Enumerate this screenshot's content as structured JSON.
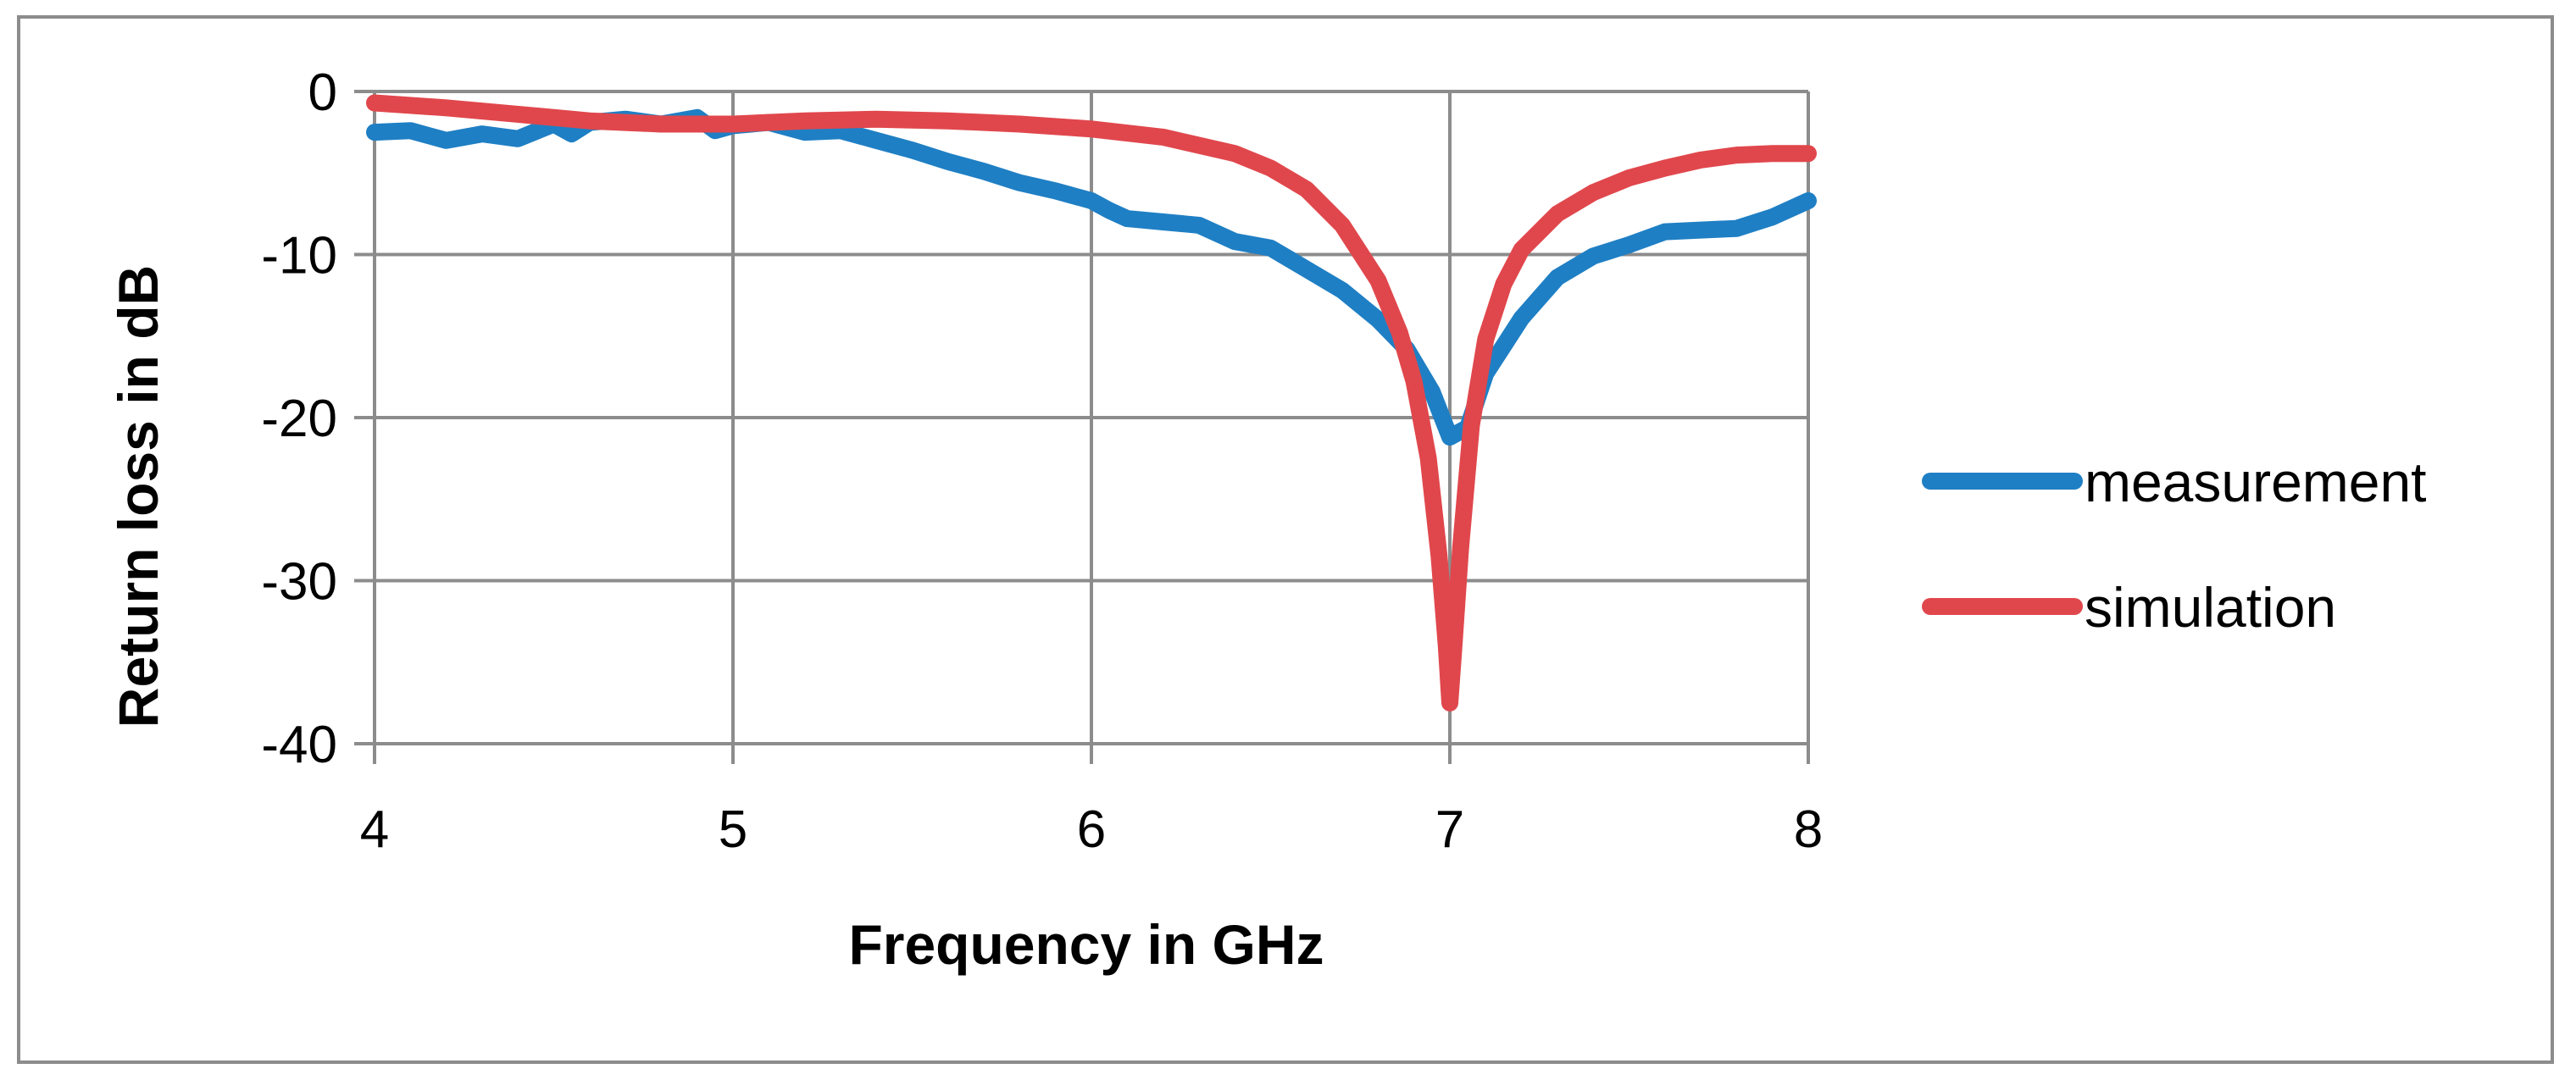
{
  "chart_data": {
    "type": "line",
    "title": "",
    "xlabel": "Frequency in GHz",
    "ylabel": "Return loss in dB",
    "xlim": [
      4,
      8
    ],
    "ylim": [
      -40,
      0
    ],
    "x_ticks": [
      "4",
      "5",
      "6",
      "7",
      "8"
    ],
    "y_ticks": [
      "0",
      "-10",
      "-20",
      "-30",
      "-40"
    ],
    "grid": true,
    "legend_position": "right",
    "series": [
      {
        "name": "measurement",
        "color": "#1f7fc4",
        "points": [
          [
            4.0,
            -2.5
          ],
          [
            4.1,
            -2.4
          ],
          [
            4.2,
            -3.0
          ],
          [
            4.3,
            -2.6
          ],
          [
            4.4,
            -2.9
          ],
          [
            4.5,
            -2.0
          ],
          [
            4.55,
            -2.6
          ],
          [
            4.6,
            -1.9
          ],
          [
            4.7,
            -1.7
          ],
          [
            4.8,
            -2.0
          ],
          [
            4.9,
            -1.6
          ],
          [
            4.95,
            -2.4
          ],
          [
            5.0,
            -2.1
          ],
          [
            5.1,
            -1.9
          ],
          [
            5.2,
            -2.5
          ],
          [
            5.3,
            -2.4
          ],
          [
            5.4,
            -3.0
          ],
          [
            5.5,
            -3.6
          ],
          [
            5.6,
            -4.3
          ],
          [
            5.7,
            -4.9
          ],
          [
            5.8,
            -5.6
          ],
          [
            5.9,
            -6.1
          ],
          [
            6.0,
            -6.7
          ],
          [
            6.05,
            -7.3
          ],
          [
            6.1,
            -7.8
          ],
          [
            6.2,
            -8.0
          ],
          [
            6.3,
            -8.2
          ],
          [
            6.4,
            -9.2
          ],
          [
            6.5,
            -9.6
          ],
          [
            6.6,
            -10.9
          ],
          [
            6.7,
            -12.2
          ],
          [
            6.8,
            -14.0
          ],
          [
            6.88,
            -15.8
          ],
          [
            6.95,
            -18.4
          ],
          [
            7.0,
            -21.2
          ],
          [
            7.05,
            -20.6
          ],
          [
            7.1,
            -17.3
          ],
          [
            7.2,
            -13.9
          ],
          [
            7.3,
            -11.4
          ],
          [
            7.4,
            -10.1
          ],
          [
            7.5,
            -9.4
          ],
          [
            7.6,
            -8.6
          ],
          [
            7.7,
            -8.5
          ],
          [
            7.8,
            -8.4
          ],
          [
            7.9,
            -7.7
          ],
          [
            8.0,
            -6.7
          ]
        ]
      },
      {
        "name": "simulation",
        "color": "#e0474c",
        "points": [
          [
            4.0,
            -0.7
          ],
          [
            4.2,
            -1.0
          ],
          [
            4.4,
            -1.4
          ],
          [
            4.6,
            -1.8
          ],
          [
            4.8,
            -2.0
          ],
          [
            5.0,
            -2.0
          ],
          [
            5.2,
            -1.8
          ],
          [
            5.4,
            -1.7
          ],
          [
            5.6,
            -1.8
          ],
          [
            5.8,
            -2.0
          ],
          [
            6.0,
            -2.3
          ],
          [
            6.2,
            -2.8
          ],
          [
            6.4,
            -3.8
          ],
          [
            6.5,
            -4.7
          ],
          [
            6.6,
            -6.0
          ],
          [
            6.7,
            -8.2
          ],
          [
            6.8,
            -11.6
          ],
          [
            6.86,
            -14.8
          ],
          [
            6.9,
            -17.8
          ],
          [
            6.94,
            -22.5
          ],
          [
            6.97,
            -28.5
          ],
          [
            6.99,
            -34.0
          ],
          [
            7.0,
            -37.5
          ],
          [
            7.01,
            -34.5
          ],
          [
            7.03,
            -28.0
          ],
          [
            7.06,
            -20.5
          ],
          [
            7.1,
            -15.2
          ],
          [
            7.15,
            -11.8
          ],
          [
            7.2,
            -9.7
          ],
          [
            7.3,
            -7.5
          ],
          [
            7.4,
            -6.2
          ],
          [
            7.5,
            -5.3
          ],
          [
            7.6,
            -4.7
          ],
          [
            7.7,
            -4.2
          ],
          [
            7.8,
            -3.9
          ],
          [
            7.9,
            -3.8
          ],
          [
            8.0,
            -3.8
          ]
        ]
      }
    ]
  }
}
